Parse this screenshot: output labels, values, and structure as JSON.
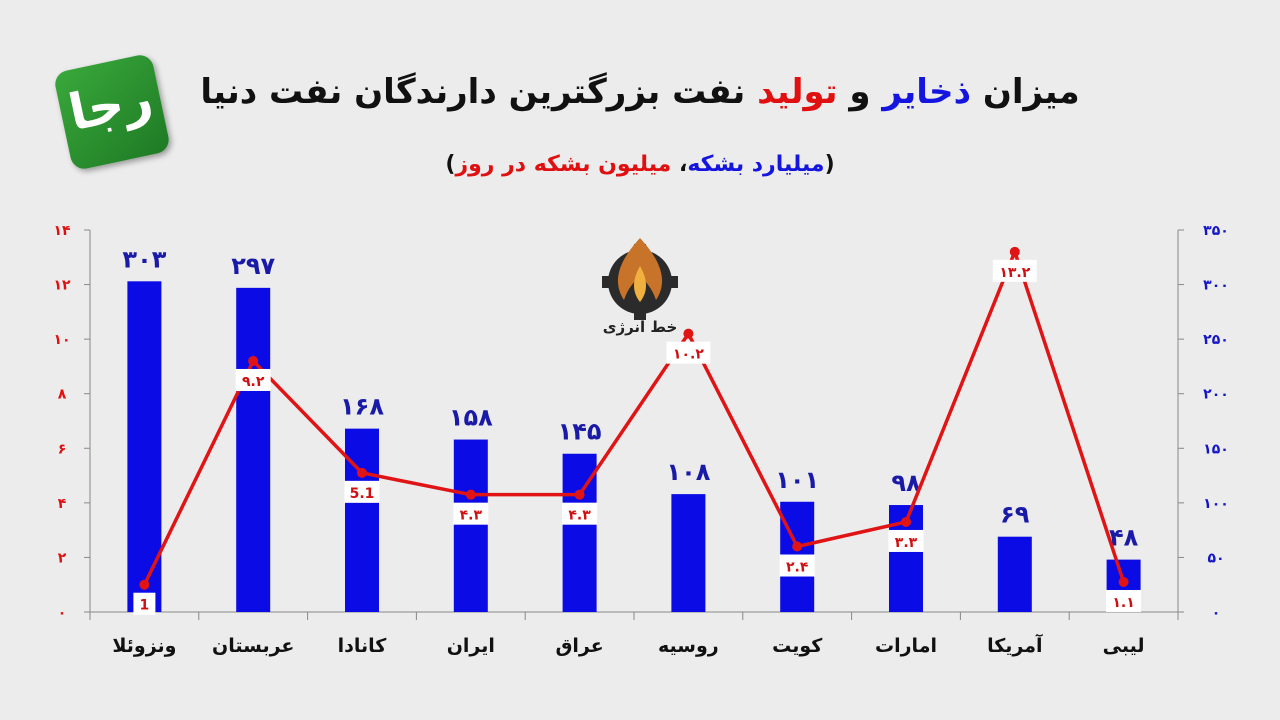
{
  "title": {
    "part1": "میزان",
    "part2": "ذخایر",
    "part3": "و",
    "part4": "تولید",
    "part5": "نفت بزرگترین دارندگان نفت دنیا"
  },
  "subtitle": {
    "open": "(",
    "reserves": "میلیارد بشکه",
    "sep": "،",
    "production": "میلیون بشکه در روز",
    "close": ")"
  },
  "logo": {
    "text": "رجا",
    "icon": "raja-logo"
  },
  "watermark": {
    "text": "خط انرژی",
    "icon": "flame-gear-logo"
  },
  "colors": {
    "bar": "#0b0be6",
    "line": "#e01414",
    "axis_left": "#e01010",
    "axis_right": "#1515c8"
  },
  "chart_data": {
    "type": "bar",
    "categories": [
      "ونزوئلا",
      "عربستان",
      "کانادا",
      "ایران",
      "عراق",
      "روسیه",
      "کویت",
      "امارات",
      "آمریکا",
      "لیبی"
    ],
    "series": [
      {
        "type": "bar",
        "axis": "right",
        "values": [
          303,
          297,
          168,
          158,
          145,
          108,
          101,
          98,
          69,
          48
        ],
        "labels": [
          "۳۰۳",
          "۲۹۷",
          "۱۶۸",
          "۱۵۸",
          "۱۴۵",
          "۱۰۸",
          "۱۰۱",
          "۹۸",
          "۶۹",
          "۴۸"
        ]
      },
      {
        "type": "line",
        "axis": "left",
        "values": [
          1,
          9.2,
          5.1,
          4.3,
          4.3,
          10.2,
          2.4,
          3.3,
          13.2,
          1.1
        ],
        "labels": [
          "1",
          "۹.۲",
          "5.1",
          "۴.۳",
          "۴.۳",
          "۱۰.۲",
          "۲.۴",
          "۳.۳",
          "۱۳.۲",
          "۱.۱"
        ]
      }
    ],
    "y_left": {
      "ylim": [
        0,
        14
      ],
      "ticks": [
        0,
        2,
        4,
        6,
        8,
        10,
        12,
        14
      ],
      "tick_labels": [
        "۰",
        "۲",
        "۴",
        "۶",
        "۸",
        "۱۰",
        "۱۲",
        "۱۴"
      ]
    },
    "y_right": {
      "ylim": [
        0,
        350
      ],
      "ticks": [
        0,
        50,
        100,
        150,
        200,
        250,
        300,
        350
      ],
      "tick_labels": [
        "۰",
        "۵۰",
        "۱۰۰",
        "۱۵۰",
        "۲۰۰",
        "۲۵۰",
        "۳۰۰",
        "۳۵۰"
      ]
    },
    "grid": false
  }
}
